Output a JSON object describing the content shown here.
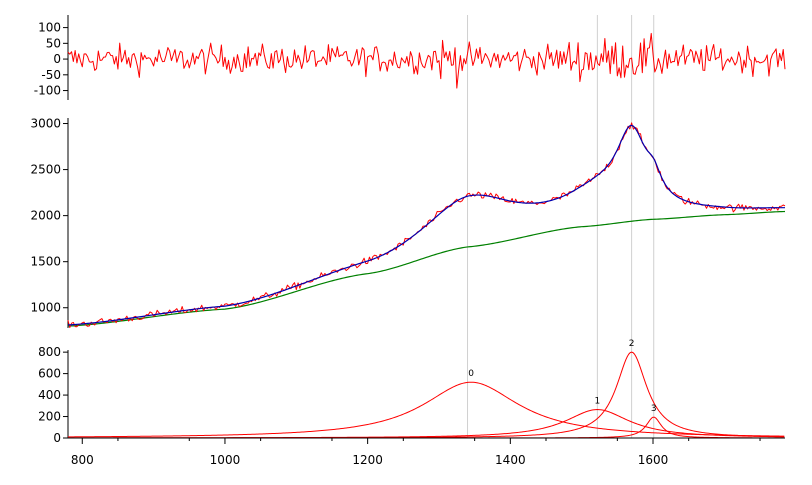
{
  "chart_data": [
    {
      "type": "line",
      "panel": "residual",
      "ylim": [
        -130,
        140
      ],
      "yticks": [
        -100,
        -50,
        0,
        50,
        100
      ],
      "ytick_labels": [
        "-100",
        "-50",
        "0",
        "50",
        "100"
      ],
      "series": [
        {
          "color": "#ff0000",
          "amplitude": 40
        }
      ]
    },
    {
      "type": "line",
      "panel": "fit",
      "xlim": [
        780,
        1785
      ],
      "ylim": [
        780,
        3060
      ],
      "yticks": [
        1000,
        1500,
        2000,
        2500,
        3000
      ],
      "ytick_labels": [
        "1000",
        "1500",
        "2000",
        "2500",
        "3000"
      ],
      "grid": false,
      "series": [
        {
          "color": "#ff0000",
          "kind": "data",
          "noise": 40
        },
        {
          "color": "#0000b0",
          "kind": "fit"
        },
        {
          "color": "#008000",
          "kind": "baseline"
        }
      ],
      "baseline_points": [
        [
          780,
          800
        ],
        [
          1000,
          985
        ],
        [
          1200,
          1370
        ],
        [
          1340,
          1660
        ],
        [
          1500,
          1880
        ],
        [
          1600,
          1960
        ],
        [
          1700,
          2010
        ],
        [
          1785,
          2045
        ]
      ]
    },
    {
      "type": "line",
      "panel": "peaks",
      "xlim": [
        780,
        1785
      ],
      "ylim": [
        0,
        820
      ],
      "yticks": [
        0,
        200,
        400,
        600,
        800
      ],
      "ytick_labels": [
        "0",
        "200",
        "400",
        "600",
        "800"
      ],
      "xticks": [
        800,
        1000,
        1200,
        1400,
        1600
      ],
      "xtick_labels": [
        "800",
        "1000",
        "1200",
        "1400",
        "1600"
      ],
      "guide_lines_x": [
        1340,
        1522,
        1570,
        1601
      ],
      "series": [
        {
          "label": "0",
          "center": 1345,
          "height": 520,
          "hwhm": 82,
          "color": "#ff0000"
        },
        {
          "label": "1",
          "center": 1522,
          "height": 265,
          "hwhm": 55,
          "color": "#ff0000"
        },
        {
          "label": "2",
          "center": 1570,
          "height": 800,
          "hwhm": 26,
          "color": "#ff0000"
        },
        {
          "label": "3",
          "center": 1601,
          "height": 195,
          "hwhm": 13,
          "color": "#ff0000"
        }
      ]
    }
  ]
}
